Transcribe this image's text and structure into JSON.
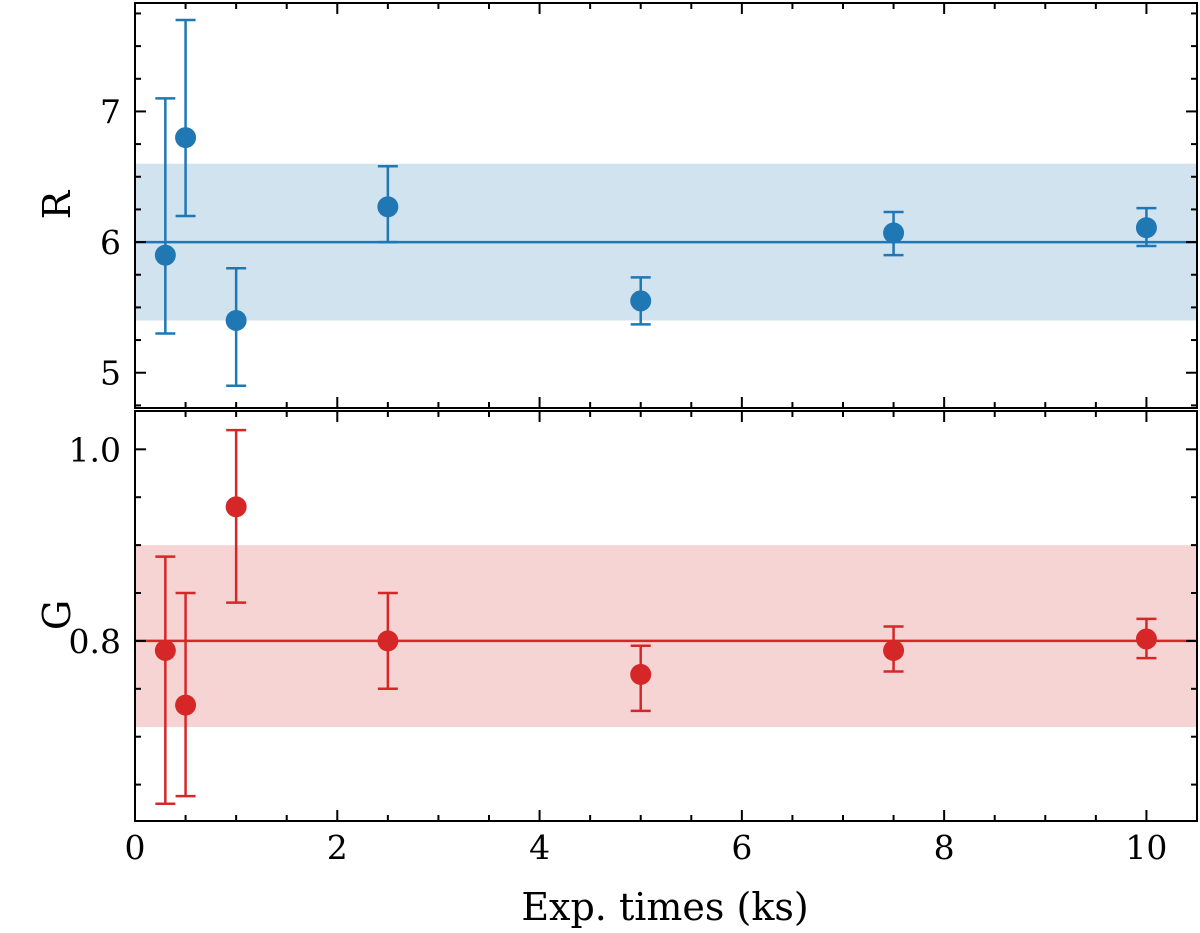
{
  "chart_data": [
    {
      "id": "R",
      "type": "scatter",
      "ylabel": "R",
      "xlim": [
        0,
        10.5
      ],
      "ylim": [
        4.73,
        7.83
      ],
      "xticks": [
        0,
        2,
        4,
        6,
        8,
        10
      ],
      "yticks": [
        5,
        6,
        7
      ],
      "ytick_labels": [
        "5",
        "6",
        "7"
      ],
      "color": "#1f77b4",
      "band_color": "#d2e3f0",
      "reference_line": 6.0,
      "band": [
        5.4,
        6.6
      ],
      "points": [
        {
          "x": 0.3,
          "y": 5.9,
          "ylow": 5.3,
          "yhigh": 7.1
        },
        {
          "x": 0.5,
          "y": 6.8,
          "ylow": 6.2,
          "yhigh": 7.7
        },
        {
          "x": 1.0,
          "y": 5.4,
          "ylow": 4.9,
          "yhigh": 5.8
        },
        {
          "x": 2.5,
          "y": 6.27,
          "ylow": 6.0,
          "yhigh": 6.58
        },
        {
          "x": 5.0,
          "y": 5.55,
          "ylow": 5.37,
          "yhigh": 5.73
        },
        {
          "x": 7.5,
          "y": 6.07,
          "ylow": 5.9,
          "yhigh": 6.23
        },
        {
          "x": 10.0,
          "y": 6.11,
          "ylow": 5.97,
          "yhigh": 6.26
        }
      ]
    },
    {
      "id": "G",
      "type": "scatter",
      "ylabel": "G",
      "xlabel": "Exp. times (ks)",
      "xlim": [
        0,
        10.5
      ],
      "ylim": [
        0.612,
        1.04
      ],
      "xticks": [
        0,
        2,
        4,
        6,
        8,
        10
      ],
      "xtick_labels": [
        "0",
        "2",
        "4",
        "6",
        "8",
        "10"
      ],
      "yticks": [
        0.8,
        1.0
      ],
      "ytick_labels": [
        "0.8",
        "1.0"
      ],
      "color": "#d62728",
      "band_color": "#f7d4d4",
      "reference_line": 0.8,
      "band": [
        0.71,
        0.9
      ],
      "points": [
        {
          "x": 0.3,
          "y": 0.79,
          "ylow": 0.63,
          "yhigh": 0.888
        },
        {
          "x": 0.5,
          "y": 0.733,
          "ylow": 0.638,
          "yhigh": 0.85
        },
        {
          "x": 1.0,
          "y": 0.94,
          "ylow": 0.84,
          "yhigh": 1.02
        },
        {
          "x": 2.5,
          "y": 0.8,
          "ylow": 0.75,
          "yhigh": 0.85
        },
        {
          "x": 5.0,
          "y": 0.765,
          "ylow": 0.727,
          "yhigh": 0.795
        },
        {
          "x": 7.5,
          "y": 0.79,
          "ylow": 0.768,
          "yhigh": 0.815
        },
        {
          "x": 10.0,
          "y": 0.802,
          "ylow": 0.782,
          "yhigh": 0.823
        }
      ]
    }
  ]
}
